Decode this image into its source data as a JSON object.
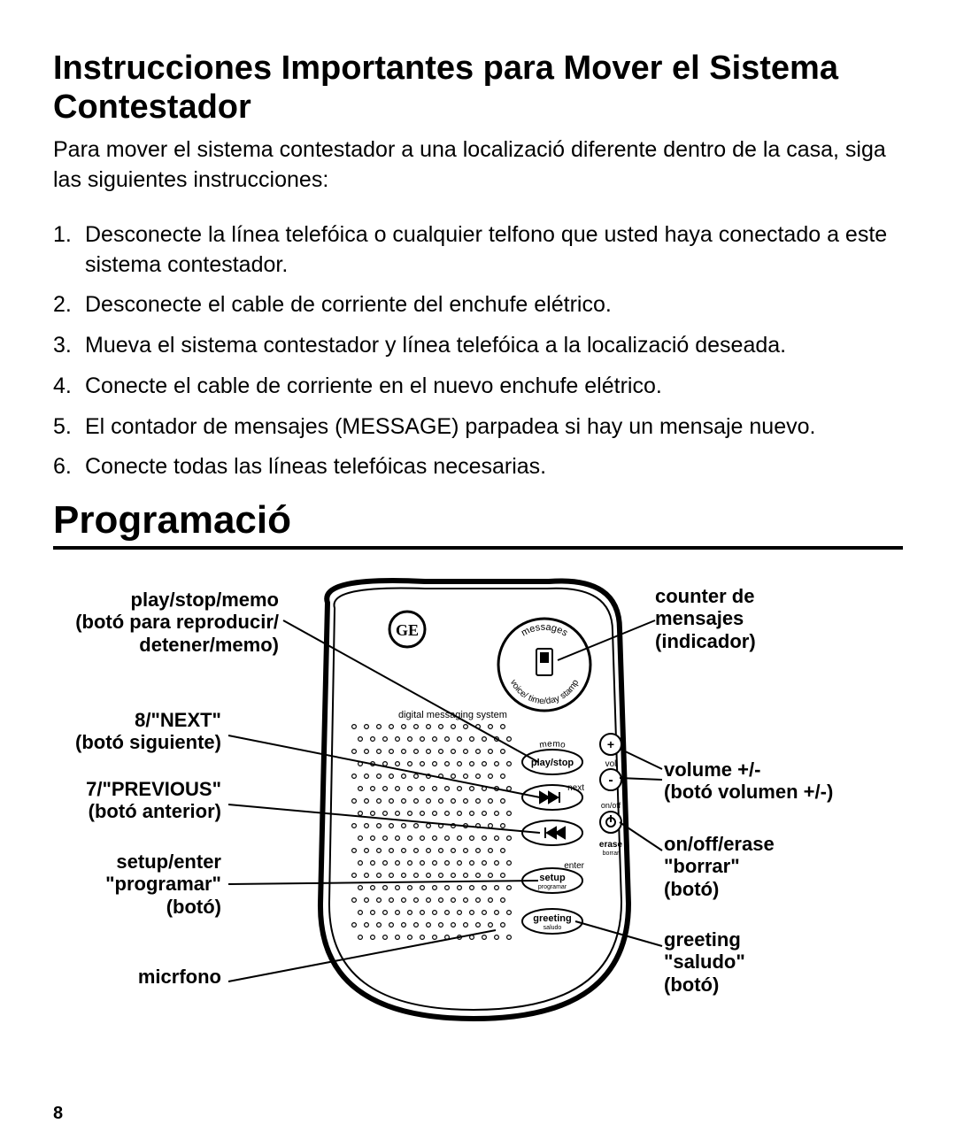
{
  "title": "Instrucciones Importantes para Mover el Sistema Contestador",
  "intro": "Para mover el sistema contestador a una localizació diferente dentro de la casa, siga las siguientes instrucciones:",
  "steps": [
    "Desconecte la línea telefóica o cualquier telfono que usted haya conectado a este sistema contestador.",
    "Desconecte el cable de corriente del enchufe elétrico.",
    "Mueva el sistema contestador y línea telefóica a la localizació deseada.",
    "Conecte el cable de corriente en el nuevo enchufe elétrico.",
    "El contador de mensajes (MESSAGE) parpadea si hay un mensaje nuevo.",
    "Conecte todas las líneas telefóicas necesarias."
  ],
  "section2": "Programació",
  "labels": {
    "playstop": "play/stop/memo\n(botó para reproducir/\ndetener/memo)",
    "next": "8/\"NEXT\"\n(botó siguiente)",
    "prev": "7/\"PREVIOUS\"\n(botó  anterior)",
    "setup": "setup/enter\n\"programar\"\n(botó)",
    "mic": "micrfono",
    "counter": "counter de\nmensajes\n(indicador)",
    "volume": "volume +/-\n(botó volumen +/-)",
    "onoff": "on/off/erase\n\"borrar\"\n(botó)",
    "greeting": "greeting\n\"saludo\"\n(botó)"
  },
  "device_text": {
    "dms": "digital messaging system",
    "messages": "messages",
    "vts": "voice/ time/day stamp",
    "memo": "memo",
    "playstop": "play/stop",
    "next_small": "next",
    "enter": "enter",
    "setup_btn": "setup",
    "programar": "programar",
    "greeting_btn": "greeting",
    "saludo": "saludo",
    "vol": "vol",
    "onoff_small": "on/off",
    "erase": "erase",
    "borrar": "borrar"
  },
  "page_number": "8",
  "colors": {
    "fg": "#000000",
    "bg": "#ffffff"
  }
}
